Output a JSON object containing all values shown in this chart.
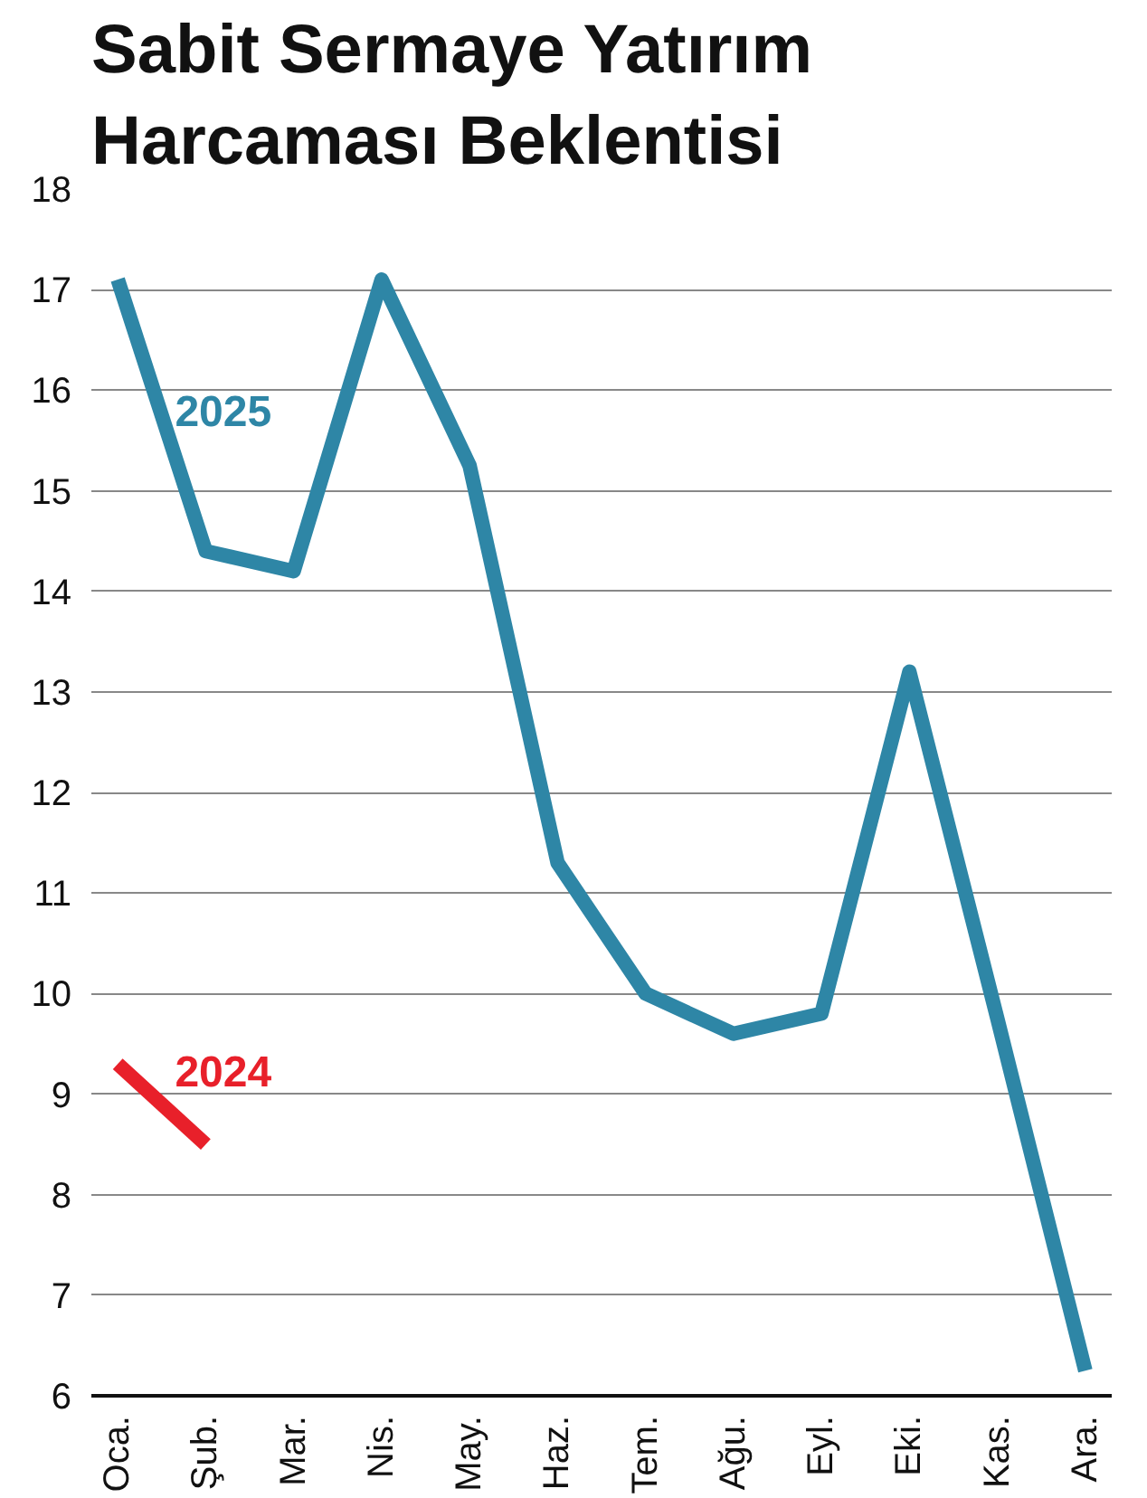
{
  "chart_data": {
    "type": "line",
    "title": "Sabit Sermaye Yatırım\nHarcaması Beklentisi",
    "categories": [
      "Oca.",
      "Şub.",
      "Mar.",
      "Nis.",
      "May.",
      "Haz.",
      "Tem.",
      "Ağu.",
      "Eyl.",
      "Eki.",
      "Kas.",
      "Ara."
    ],
    "series": [
      {
        "name": "2025",
        "color": "#2e86a6",
        "values": [
          17.1,
          14.4,
          14.2,
          17.1,
          15.25,
          11.3,
          10.0,
          9.6,
          9.8,
          13.2,
          9.75,
          6.25
        ]
      },
      {
        "name": "2024",
        "color": "#e8202a",
        "values": [
          9.3,
          8.5,
          null,
          null,
          null,
          null,
          null,
          null,
          null,
          null,
          null,
          null
        ]
      }
    ],
    "ylim": [
      6,
      18
    ],
    "yticks": [
      6,
      7,
      8,
      9,
      10,
      11,
      12,
      13,
      14,
      15,
      16,
      17,
      18
    ],
    "grid": "y",
    "line_style": "solid",
    "marker": "none"
  }
}
